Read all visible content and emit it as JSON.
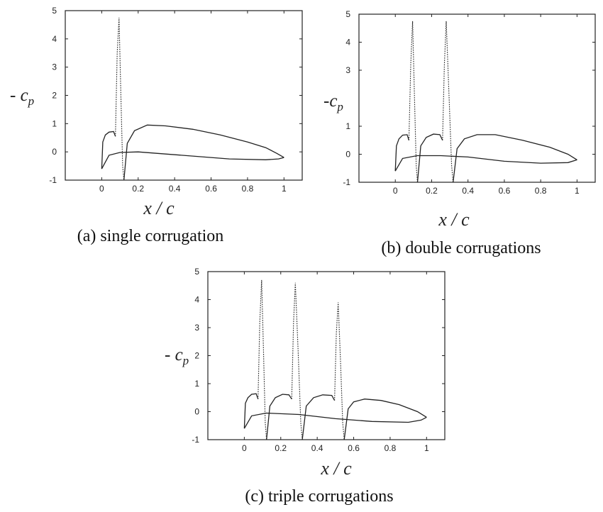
{
  "chart_data": [
    {
      "type": "line",
      "caption": "(a) single corrugation",
      "ylabel": "- c",
      "ylabel_sub": "p",
      "xlabel": "x / c",
      "xlim": [
        -0.2,
        1.1
      ],
      "ylim": [
        -1,
        5
      ],
      "xticks": [
        "0",
        "0.2",
        "0.4",
        "0.6",
        "0.8",
        "1"
      ],
      "xtick_values": [
        0,
        0.2,
        0.4,
        0.6,
        0.8,
        1
      ],
      "yticks": [
        "-1",
        "0",
        "1",
        "2",
        "3",
        "4",
        "5"
      ],
      "ytick_values": [
        -1,
        0,
        1,
        2,
        3,
        4,
        5
      ],
      "series": [
        {
          "style": "solid",
          "points": [
            [
              0,
              -0.6
            ],
            [
              0.006,
              0.35
            ],
            [
              0.02,
              0.6
            ],
            [
              0.04,
              0.7
            ],
            [
              0.065,
              0.72
            ],
            [
              0.075,
              0.55
            ]
          ]
        },
        {
          "style": "dotted",
          "points": [
            [
              0.075,
              0.55
            ],
            [
              0.085,
              3.5
            ],
            [
              0.095,
              4.75
            ],
            [
              0.105,
              2.0
            ],
            [
              0.115,
              -0.5
            ],
            [
              0.122,
              -1.0
            ]
          ]
        },
        {
          "style": "solid",
          "points": [
            [
              0.122,
              -1.0
            ],
            [
              0.14,
              0.3
            ],
            [
              0.18,
              0.75
            ],
            [
              0.25,
              0.95
            ],
            [
              0.35,
              0.92
            ],
            [
              0.5,
              0.8
            ],
            [
              0.65,
              0.6
            ],
            [
              0.8,
              0.35
            ],
            [
              0.9,
              0.15
            ],
            [
              0.96,
              -0.05
            ],
            [
              1.0,
              -0.2
            ]
          ]
        },
        {
          "style": "solid",
          "points": [
            [
              0,
              -0.6
            ],
            [
              0.04,
              -0.12
            ],
            [
              0.1,
              -0.02
            ],
            [
              0.2,
              0.0
            ],
            [
              0.3,
              -0.05
            ],
            [
              0.5,
              -0.15
            ],
            [
              0.7,
              -0.25
            ],
            [
              0.9,
              -0.28
            ],
            [
              0.97,
              -0.25
            ],
            [
              1.0,
              -0.2
            ]
          ]
        }
      ]
    },
    {
      "type": "line",
      "caption": "(b) double corrugations",
      "ylabel": "-c",
      "ylabel_sub": "p",
      "xlabel": "x / c",
      "xlim": [
        -0.2,
        1.1
      ],
      "ylim": [
        -1,
        5
      ],
      "xticks": [
        "0",
        "0.2",
        "0.4",
        "0.6",
        "0.8",
        "1"
      ],
      "xtick_values": [
        0,
        0.2,
        0.4,
        0.6,
        0.8,
        1
      ],
      "yticks": [
        "-1",
        "0",
        "1",
        "3",
        "4",
        "5"
      ],
      "ytick_values": [
        -1,
        0,
        1,
        3,
        4,
        5
      ],
      "series": [
        {
          "style": "solid",
          "points": [
            [
              0,
              -0.6
            ],
            [
              0.006,
              0.3
            ],
            [
              0.02,
              0.55
            ],
            [
              0.04,
              0.68
            ],
            [
              0.065,
              0.7
            ],
            [
              0.075,
              0.5
            ]
          ]
        },
        {
          "style": "dotted",
          "points": [
            [
              0.075,
              0.5
            ],
            [
              0.085,
              3.2
            ],
            [
              0.095,
              4.75
            ],
            [
              0.105,
              2.2
            ],
            [
              0.115,
              -0.4
            ],
            [
              0.122,
              -1.0
            ]
          ]
        },
        {
          "style": "solid",
          "points": [
            [
              0.122,
              -1.0
            ],
            [
              0.14,
              0.3
            ],
            [
              0.17,
              0.6
            ],
            [
              0.21,
              0.72
            ],
            [
              0.245,
              0.7
            ],
            [
              0.26,
              0.5
            ]
          ]
        },
        {
          "style": "dotted",
          "points": [
            [
              0.26,
              0.5
            ],
            [
              0.27,
              3.2
            ],
            [
              0.28,
              4.75
            ],
            [
              0.295,
              2.2
            ],
            [
              0.31,
              -0.4
            ],
            [
              0.318,
              -1.0
            ]
          ]
        },
        {
          "style": "solid",
          "points": [
            [
              0.318,
              -1.0
            ],
            [
              0.34,
              0.2
            ],
            [
              0.38,
              0.55
            ],
            [
              0.45,
              0.7
            ],
            [
              0.55,
              0.7
            ],
            [
              0.7,
              0.5
            ],
            [
              0.85,
              0.25
            ],
            [
              0.95,
              0.0
            ],
            [
              1.0,
              -0.2
            ]
          ]
        },
        {
          "style": "solid",
          "points": [
            [
              0,
              -0.6
            ],
            [
              0.04,
              -0.15
            ],
            [
              0.12,
              -0.05
            ],
            [
              0.25,
              -0.05
            ],
            [
              0.4,
              -0.1
            ],
            [
              0.6,
              -0.25
            ],
            [
              0.8,
              -0.32
            ],
            [
              0.95,
              -0.3
            ],
            [
              1.0,
              -0.2
            ]
          ]
        }
      ]
    },
    {
      "type": "line",
      "caption": "(c) triple corrugations",
      "ylabel": "- c",
      "ylabel_sub": "p",
      "xlabel": "x / c",
      "xlim": [
        -0.2,
        1.1
      ],
      "ylim": [
        -1,
        5
      ],
      "xticks": [
        "0",
        "0.2",
        "0.4",
        "0.6",
        "0.8",
        "1"
      ],
      "xtick_values": [
        0,
        0.2,
        0.4,
        0.6,
        0.8,
        1
      ],
      "yticks": [
        "-1",
        "0",
        "1",
        "2",
        "3",
        "4",
        "5"
      ],
      "ytick_values": [
        -1,
        0,
        1,
        2,
        3,
        4,
        5
      ],
      "series": [
        {
          "style": "solid",
          "points": [
            [
              0,
              -0.6
            ],
            [
              0.006,
              0.3
            ],
            [
              0.02,
              0.5
            ],
            [
              0.04,
              0.62
            ],
            [
              0.065,
              0.64
            ],
            [
              0.075,
              0.45
            ]
          ]
        },
        {
          "style": "dotted",
          "points": [
            [
              0.075,
              0.45
            ],
            [
              0.085,
              3.2
            ],
            [
              0.095,
              4.7
            ],
            [
              0.105,
              2.2
            ],
            [
              0.115,
              -0.4
            ],
            [
              0.122,
              -1.0
            ]
          ]
        },
        {
          "style": "solid",
          "points": [
            [
              0.122,
              -1.0
            ],
            [
              0.14,
              0.2
            ],
            [
              0.17,
              0.5
            ],
            [
              0.21,
              0.62
            ],
            [
              0.245,
              0.6
            ],
            [
              0.26,
              0.45
            ]
          ]
        },
        {
          "style": "dotted",
          "points": [
            [
              0.26,
              0.45
            ],
            [
              0.27,
              3.2
            ],
            [
              0.28,
              4.6
            ],
            [
              0.295,
              2.2
            ],
            [
              0.31,
              -0.4
            ],
            [
              0.318,
              -1.0
            ]
          ]
        },
        {
          "style": "solid",
          "points": [
            [
              0.318,
              -1.0
            ],
            [
              0.34,
              0.2
            ],
            [
              0.38,
              0.5
            ],
            [
              0.43,
              0.6
            ],
            [
              0.48,
              0.58
            ],
            [
              0.495,
              0.4
            ]
          ]
        },
        {
          "style": "dotted",
          "points": [
            [
              0.495,
              0.4
            ],
            [
              0.505,
              2.8
            ],
            [
              0.515,
              3.9
            ],
            [
              0.528,
              1.8
            ],
            [
              0.54,
              -0.4
            ],
            [
              0.548,
              -1.0
            ]
          ]
        },
        {
          "style": "solid",
          "points": [
            [
              0.548,
              -1.0
            ],
            [
              0.57,
              0.1
            ],
            [
              0.6,
              0.35
            ],
            [
              0.66,
              0.45
            ],
            [
              0.75,
              0.4
            ],
            [
              0.85,
              0.25
            ],
            [
              0.95,
              0.0
            ],
            [
              1.0,
              -0.2
            ]
          ]
        },
        {
          "style": "solid",
          "points": [
            [
              0,
              -0.6
            ],
            [
              0.04,
              -0.15
            ],
            [
              0.12,
              -0.05
            ],
            [
              0.3,
              -0.1
            ],
            [
              0.5,
              -0.25
            ],
            [
              0.7,
              -0.35
            ],
            [
              0.9,
              -0.38
            ],
            [
              0.97,
              -0.3
            ],
            [
              1.0,
              -0.2
            ]
          ]
        }
      ]
    }
  ]
}
